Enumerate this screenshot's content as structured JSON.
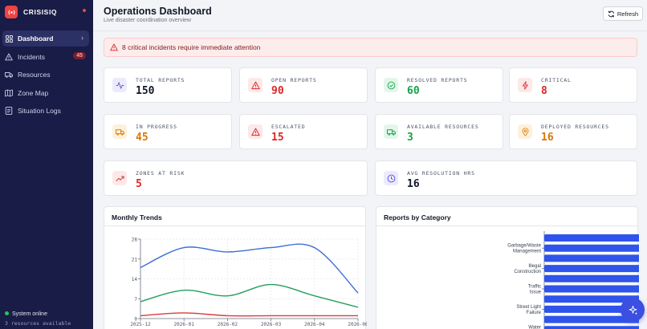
{
  "app": {
    "name": "CRISISIQ"
  },
  "sidebar": {
    "items": [
      {
        "label": "Dashboard",
        "icon": "grid-icon",
        "active": true
      },
      {
        "label": "Incidents",
        "icon": "warning-icon",
        "badge": "45"
      },
      {
        "label": "Resources",
        "icon": "truck-icon"
      },
      {
        "label": "Zone Map",
        "icon": "map-icon"
      },
      {
        "label": "Situation Logs",
        "icon": "log-icon"
      }
    ],
    "status": "System online",
    "status_sub": "3 resources available"
  },
  "header": {
    "title": "Operations Dashboard",
    "subtitle": "Live disaster coordination overview",
    "refresh_label": "Refresh"
  },
  "alert": {
    "text": "8 critical incidents require immediate attention"
  },
  "stats": [
    {
      "label": "TOTAL REPORTS",
      "value": "150",
      "color": "#111827"
    },
    {
      "label": "OPEN REPORTS",
      "value": "90",
      "color": "#dc2626"
    },
    {
      "label": "RESOLVED REPORTS",
      "value": "60",
      "color": "#16a34a"
    },
    {
      "label": "CRITICAL",
      "value": "8",
      "color": "#dc2626"
    },
    {
      "label": "IN PROGRESS",
      "value": "45",
      "color": "#d97706"
    },
    {
      "label": "ESCALATED",
      "value": "15",
      "color": "#dc2626"
    },
    {
      "label": "AVAILABLE RESOURCES",
      "value": "3",
      "color": "#16a34a"
    },
    {
      "label": "DEPLOYED RESOURCES",
      "value": "16",
      "color": "#d97706"
    },
    {
      "label": "ZONES AT RISK",
      "value": "5",
      "color": "#dc2626"
    },
    {
      "label": "AVG RESOLUTION HRS",
      "value": "16",
      "color": "#111827"
    }
  ],
  "trends": {
    "title": "Monthly Trends",
    "chart_data": {
      "type": "line",
      "x": [
        "2025-12",
        "2026-01",
        "2026-02",
        "2026-03",
        "2026-04",
        "2026-06"
      ],
      "ylim": [
        0,
        28
      ],
      "yticks": [
        "0",
        "7",
        "14",
        "21",
        "28"
      ],
      "grid": true,
      "series": [
        {
          "color": "#3b6fd6",
          "values": [
            18,
            25,
            23.5,
            25,
            25,
            9
          ]
        },
        {
          "color": "#22a05a",
          "values": [
            6,
            10,
            8,
            12,
            8,
            4
          ]
        },
        {
          "color": "#dc3b3b",
          "values": [
            1,
            2,
            1,
            1,
            1,
            1
          ]
        }
      ]
    }
  },
  "categories": {
    "title": "Reports by Category",
    "chart_data": {
      "type": "bar",
      "orientation": "horizontal",
      "color": "#2f54eb",
      "labels": [
        "Garbage/Waste Management",
        "Illegal Construction",
        "Traffic Issue",
        "Street Light Failure",
        "Water Leakage"
      ]
    }
  }
}
